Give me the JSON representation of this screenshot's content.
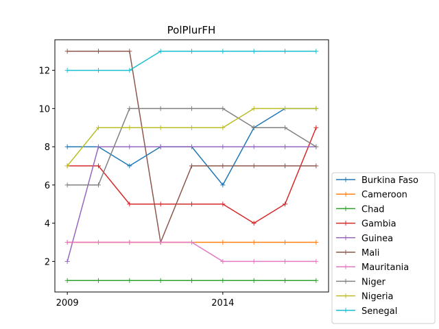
{
  "chart_data": {
    "type": "line",
    "title": "PolPlurFH",
    "xlabel": "",
    "ylabel": "",
    "x": [
      2009,
      2010,
      2011,
      2012,
      2013,
      2014,
      2015,
      2016,
      2017
    ],
    "xlim": [
      2008.6,
      2017.4
    ],
    "ylim": [
      0.4,
      13.6
    ],
    "xticks": [
      2009,
      2014
    ],
    "xtick_labels": [
      "2009",
      "2014"
    ],
    "yticks": [
      2,
      4,
      6,
      8,
      10,
      12
    ],
    "ytick_labels": [
      "2",
      "4",
      "6",
      "8",
      "10",
      "12"
    ],
    "grid": false,
    "legend_position": "outside-bottom-right",
    "series": [
      {
        "name": "Burkina Faso",
        "color": "#1f77b4",
        "values": [
          8,
          8,
          7,
          8,
          8,
          6,
          9,
          10,
          10
        ]
      },
      {
        "name": "Cameroon",
        "color": "#ff7f0e",
        "values": [
          3,
          3,
          3,
          3,
          3,
          3,
          3,
          3,
          3
        ]
      },
      {
        "name": "Chad",
        "color": "#2ca02c",
        "values": [
          1,
          1,
          1,
          1,
          1,
          1,
          1,
          1,
          1
        ]
      },
      {
        "name": "Gambia",
        "color": "#d62728",
        "values": [
          7,
          7,
          5,
          5,
          5,
          5,
          4,
          5,
          9
        ]
      },
      {
        "name": "Guinea",
        "color": "#9467bd",
        "values": [
          2,
          8,
          8,
          8,
          8,
          8,
          8,
          8,
          8
        ]
      },
      {
        "name": "Mali",
        "color": "#8c564b",
        "values": [
          13,
          13,
          13,
          3,
          7,
          7,
          7,
          7,
          7
        ]
      },
      {
        "name": "Mauritania",
        "color": "#e377c2",
        "values": [
          3,
          3,
          3,
          3,
          3,
          2,
          2,
          2,
          2
        ]
      },
      {
        "name": "Niger",
        "color": "#7f7f7f",
        "values": [
          6,
          6,
          10,
          10,
          10,
          10,
          9,
          9,
          8
        ]
      },
      {
        "name": "Nigeria",
        "color": "#bcbd22",
        "values": [
          7,
          9,
          9,
          9,
          9,
          9,
          10,
          10,
          10
        ]
      },
      {
        "name": "Senegal",
        "color": "#17becf",
        "values": [
          12,
          12,
          12,
          13,
          13,
          13,
          13,
          13,
          13
        ]
      }
    ]
  }
}
